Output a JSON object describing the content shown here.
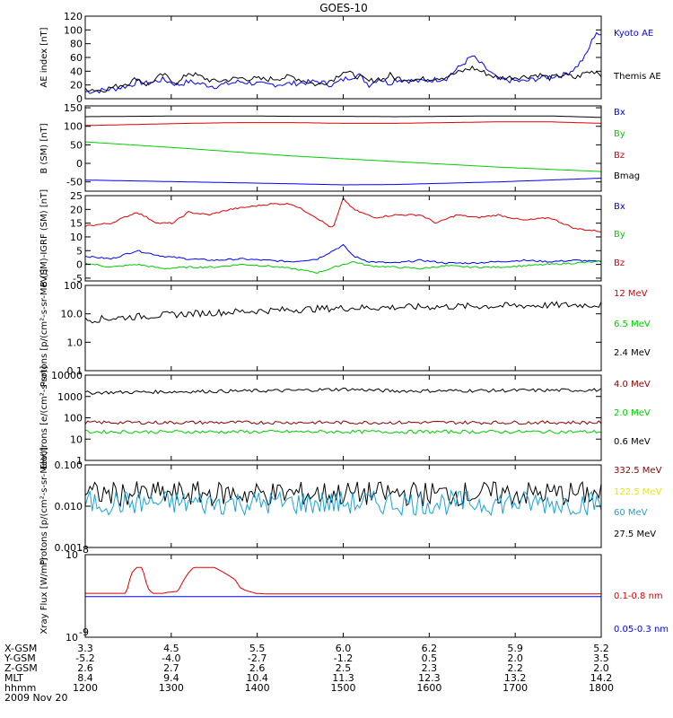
{
  "title": "GOES-10",
  "colors": {
    "black": "#000000",
    "blue": "#0000ff",
    "green": "#00cc00",
    "red": "#dd0000",
    "darkred": "#8b0000",
    "cyan": "#1aa3d9",
    "yellow": "#e8e800"
  },
  "chart_data": [
    {
      "type": "line",
      "ylabel": "AE index [nT]",
      "ylim": [
        0,
        120
      ],
      "yticks": [
        0,
        20,
        40,
        60,
        80,
        100,
        120
      ],
      "ytick_labels": [
        "0",
        "20",
        "40",
        "60",
        "80",
        "100",
        "120"
      ],
      "legend": [
        {
          "label": "Kyoto AE",
          "color": "#0000ff"
        },
        {
          "label": "Themis AE",
          "color": "#000000"
        }
      ],
      "series": [
        {
          "name": "Kyoto AE",
          "color": "#0000ff",
          "x": [
            0,
            0.3,
            0.6,
            0.9,
            1.0,
            1.2,
            1.5,
            1.8,
            2.0,
            2.5,
            3.0,
            3.5,
            4.0,
            4.5,
            4.8,
            5.0,
            5.3,
            5.5,
            5.7,
            5.8,
            5.9,
            6.0,
            6.5,
            7.0,
            7.5,
            8.0,
            8.5,
            8.8,
            9.0,
            9.3,
            9.5,
            9.7,
            9.9,
            10.0
          ],
          "y": [
            10,
            12,
            15,
            20,
            25,
            22,
            28,
            20,
            25,
            18,
            25,
            20,
            22,
            25,
            20,
            28,
            35,
            20,
            30,
            25,
            22,
            28,
            25,
            30,
            62,
            28,
            25,
            30,
            32,
            35,
            45,
            62,
            98,
            90
          ]
        },
        {
          "name": "Themis AE",
          "color": "#000000",
          "x": [
            0,
            0.3,
            0.6,
            0.9,
            1.0,
            1.2,
            1.5,
            1.8,
            2.0,
            2.5,
            3.0,
            3.5,
            4.0,
            4.5,
            4.8,
            5.0,
            5.3,
            5.5,
            5.7,
            5.8,
            5.9,
            6.0,
            6.5,
            7.0,
            7.5,
            8.0,
            8.5,
            8.8,
            9.0,
            9.3,
            9.5,
            9.7,
            9.9,
            10.0
          ],
          "y": [
            15,
            12,
            18,
            25,
            30,
            20,
            35,
            22,
            38,
            25,
            30,
            28,
            32,
            20,
            28,
            40,
            32,
            25,
            30,
            28,
            35,
            30,
            28,
            32,
            45,
            30,
            32,
            35,
            30,
            35,
            30,
            38,
            40,
            35
          ]
        }
      ]
    },
    {
      "type": "line",
      "ylabel": "B (SM) [nT]",
      "ylim": [
        -75,
        155
      ],
      "yticks": [
        -50,
        0,
        50,
        100,
        150
      ],
      "ytick_labels": [
        "-50",
        "0",
        "50",
        "100",
        "150"
      ],
      "legend": [
        {
          "label": "Bx",
          "color": "#0000ff"
        },
        {
          "label": "By",
          "color": "#00cc00"
        },
        {
          "label": "Bz",
          "color": "#dd0000"
        },
        {
          "label": "Bmag",
          "color": "#000000"
        }
      ],
      "series": [
        {
          "name": "Bx",
          "color": "#0000ff",
          "x": [
            0,
            2,
            4,
            5.0,
            6,
            8,
            10
          ],
          "y": [
            -45,
            -50,
            -55,
            -58,
            -57,
            -50,
            -40
          ]
        },
        {
          "name": "By",
          "color": "#00cc00",
          "x": [
            0,
            2,
            4,
            6,
            8,
            10
          ],
          "y": [
            58,
            40,
            20,
            5,
            -10,
            -22
          ]
        },
        {
          "name": "Bz",
          "color": "#dd0000",
          "x": [
            0,
            1,
            2,
            3,
            4,
            5,
            6,
            7,
            8,
            9,
            10
          ],
          "y": [
            102,
            105,
            108,
            110,
            110,
            108,
            108,
            110,
            112,
            112,
            108
          ]
        },
        {
          "name": "Bmag",
          "color": "#000000",
          "x": [
            0,
            1,
            2,
            3,
            4,
            5,
            6,
            7,
            8,
            9,
            10
          ],
          "y": [
            126,
            127,
            128,
            128,
            127,
            127,
            126,
            127,
            128,
            128,
            124
          ]
        }
      ]
    },
    {
      "type": "line",
      "ylabel": "B (SM)-IGRF (SM) [nT]",
      "ylim": [
        -6,
        25
      ],
      "yticks": [
        -5,
        0,
        5,
        10,
        15,
        20,
        25
      ],
      "ytick_labels": [
        "-5",
        "0",
        "5",
        "10",
        "15",
        "20",
        "25"
      ],
      "legend": [
        {
          "label": "Bx",
          "color": "#0000ff"
        },
        {
          "label": "By",
          "color": "#00cc00"
        },
        {
          "label": "Bz",
          "color": "#dd0000"
        }
      ],
      "series": [
        {
          "name": "Bx",
          "color": "#0000ff",
          "x": [
            0,
            0.5,
            1.0,
            1.5,
            2.0,
            2.5,
            3.0,
            3.5,
            4.0,
            4.5,
            5.0,
            5.2,
            5.5,
            6.0,
            6.5,
            7.0,
            7.5,
            8.0,
            8.5,
            9.0,
            9.5,
            10.0
          ],
          "y": [
            3,
            2,
            5,
            3,
            2,
            1.5,
            2,
            1.5,
            1,
            2,
            7,
            3,
            1,
            0.5,
            1.5,
            0.5,
            0.5,
            1,
            1.5,
            1,
            1.5,
            1
          ]
        },
        {
          "name": "By",
          "color": "#00cc00",
          "x": [
            0,
            0.5,
            1.0,
            1.5,
            2.0,
            2.5,
            3.0,
            3.5,
            4.0,
            4.5,
            5.0,
            5.2,
            5.5,
            6.0,
            6.5,
            7.0,
            7.5,
            8.0,
            8.5,
            9.0,
            9.5,
            10.0
          ],
          "y": [
            0.5,
            -1,
            0,
            -1.5,
            -1,
            -1,
            0,
            -0.5,
            -1.5,
            -3,
            0,
            1,
            -0.5,
            -1,
            -1.5,
            -0.5,
            -1,
            -1,
            -0.5,
            0,
            0.5,
            1
          ]
        },
        {
          "name": "Bz",
          "color": "#dd0000",
          "x": [
            0,
            0.5,
            1.0,
            1.4,
            1.7,
            2.0,
            2.4,
            2.8,
            3.2,
            3.6,
            4.0,
            4.4,
            4.8,
            5.0,
            5.2,
            5.6,
            6.0,
            6.5,
            6.8,
            7.2,
            7.6,
            8.0,
            8.5,
            9.0,
            9.5,
            10.0
          ],
          "y": [
            14,
            15,
            19,
            15,
            15,
            19,
            18,
            20,
            21,
            22,
            22,
            18,
            13,
            24,
            20,
            17,
            18,
            18,
            15,
            18,
            17,
            18,
            16,
            17,
            13,
            12
          ]
        }
      ]
    },
    {
      "type": "line",
      "yscale": "log",
      "ylabel": "Protons [p/(cm²-s-sr-MeV)]",
      "ylim": [
        0.1,
        100
      ],
      "yticks": [
        0.1,
        1.0,
        10.0,
        100
      ],
      "ytick_labels": [
        "0.1",
        "1.0",
        "10.0",
        "100"
      ],
      "legend": [
        {
          "label": "12 MeV",
          "color": "#dd0000"
        },
        {
          "label": "6.5 MeV",
          "color": "#00cc00"
        },
        {
          "label": "2.4 MeV",
          "color": "#000000"
        }
      ],
      "series": [
        {
          "name": "2.4 MeV",
          "color": "#000000",
          "x": [
            0,
            1,
            2,
            3,
            4,
            5,
            6,
            7,
            8,
            9,
            10
          ],
          "y": [
            6,
            8,
            10,
            12,
            14,
            16,
            17,
            18,
            19,
            20,
            21
          ]
        }
      ]
    },
    {
      "type": "line",
      "yscale": "log",
      "ylabel": "Electrons [e/(cm²-s-sr)]",
      "ylim": [
        1,
        10000
      ],
      "yticks": [
        1,
        10,
        100,
        1000,
        10000
      ],
      "ytick_labels": [
        "1",
        "10",
        "100",
        "1000",
        "10000"
      ],
      "legend": [
        {
          "label": "4.0 MeV",
          "color": "#8b0000"
        },
        {
          "label": "2.0 MeV",
          "color": "#00cc00"
        },
        {
          "label": "0.6 MeV",
          "color": "#000000"
        }
      ],
      "series": [
        {
          "name": "0.6 MeV",
          "color": "#000000",
          "x": [
            0,
            2,
            4,
            5,
            6,
            8,
            10
          ],
          "y": [
            1500,
            1700,
            1900,
            2200,
            1800,
            1900,
            2000
          ]
        },
        {
          "name": "4.0 MeV",
          "color": "#8b0000",
          "x": [
            0,
            5,
            10
          ],
          "y": [
            60,
            60,
            60
          ]
        },
        {
          "name": "2.0 MeV",
          "color": "#00cc00",
          "x": [
            0,
            5,
            10
          ],
          "y": [
            22,
            22,
            22
          ]
        }
      ]
    },
    {
      "type": "line",
      "yscale": "log",
      "ylabel": "Protons [p/(cm²-s-sr-MeV)]",
      "ylim": [
        0.001,
        0.1
      ],
      "yticks": [
        0.001,
        0.01,
        0.1
      ],
      "ytick_labels": [
        "0.001",
        "0.010",
        "0.100"
      ],
      "legend": [
        {
          "label": "332.5 MeV",
          "color": "#8b0000"
        },
        {
          "label": "122.5 MeV",
          "color": "#e8e800"
        },
        {
          "label": "60 MeV",
          "color": "#1aa3d9"
        },
        {
          "label": "27.5 MeV",
          "color": "#000000"
        }
      ],
      "series": [
        {
          "name": "27.5 MeV",
          "color": "#000000",
          "x": [
            0,
            5,
            10
          ],
          "y": [
            0.02,
            0.02,
            0.02
          ]
        },
        {
          "name": "60 MeV",
          "color": "#1aa3d9",
          "x": [
            0,
            5,
            10
          ],
          "y": [
            0.012,
            0.012,
            0.012
          ]
        }
      ]
    },
    {
      "type": "line",
      "yscale": "log",
      "ylabel": "Xray Flux [W/m²]",
      "ylim": [
        1e-09,
        1e-08
      ],
      "ytick_labels": [
        "10",
        "10"
      ],
      "ytick_exponents": [
        "-8",
        "-9"
      ],
      "legend": [
        {
          "label": "0.1-0.8 nm",
          "color": "#dd0000"
        },
        {
          "label": "0.05-0.3 nm",
          "color": "#0000ff"
        }
      ],
      "series": [
        {
          "name": "0.1-0.8 nm",
          "color": "#dd0000",
          "x": [
            0,
            0.8,
            0.9,
            1.0,
            1.1,
            1.2,
            1.3,
            1.4,
            1.5,
            1.6,
            1.8,
            2.0,
            2.1,
            2.2,
            2.3,
            2.5,
            2.7,
            2.9,
            3.0,
            3.1,
            3.3,
            3.5,
            4,
            5,
            6,
            7,
            8,
            9,
            10
          ],
          "y": [
            3.4e-09,
            3.4e-09,
            6e-09,
            7e-09,
            7e-09,
            4e-09,
            3.4e-09,
            3.4e-09,
            3.4e-09,
            3.5e-09,
            3.6e-09,
            6e-09,
            7e-09,
            7e-09,
            7e-09,
            7e-09,
            6e-09,
            5e-09,
            4e-09,
            3.7e-09,
            3.4e-09,
            3.35e-09,
            3.35e-09,
            3.35e-09,
            3.35e-09,
            3.35e-09,
            3.35e-09,
            3.35e-09,
            3.35e-09
          ]
        },
        {
          "name": "0.05-0.3 nm",
          "color": "#0000ff",
          "x": [
            0,
            10
          ],
          "y": [
            3.1e-09,
            3.1e-09
          ]
        }
      ]
    }
  ],
  "time_axis": {
    "ticks": [
      0,
      1,
      2,
      3,
      4,
      5,
      6
    ],
    "hhmm": [
      "1200",
      "1300",
      "1400",
      "1500",
      "1600",
      "1700",
      "1800"
    ],
    "x_range": [
      0,
      6
    ]
  },
  "ephemeris": {
    "row_labels": [
      "X-GSM",
      "Y-GSM",
      "Z-GSM",
      "MLT",
      "hhmm"
    ],
    "rows": [
      [
        "3.3",
        "4.5",
        "5.5",
        "6.0",
        "6.2",
        "5.9",
        "5.2"
      ],
      [
        "-5.2",
        "-4.0",
        "-2.7",
        "-1.2",
        "0.5",
        "2.0",
        "3.5"
      ],
      [
        "2.6",
        "2.7",
        "2.6",
        "2.5",
        "2.3",
        "2.2",
        "2.0"
      ],
      [
        "8.4",
        "9.4",
        "10.4",
        "11.3",
        "12.3",
        "13.2",
        "14.2"
      ],
      [
        "1200",
        "1300",
        "1400",
        "1500",
        "1600",
        "1700",
        "1800"
      ]
    ],
    "date": "2009 Nov 20"
  }
}
